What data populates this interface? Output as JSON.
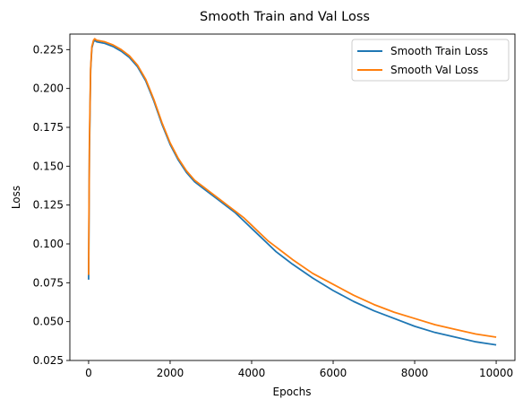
{
  "chart_data": {
    "type": "line",
    "title": "Smooth Train and Val Loss",
    "xlabel": "Epochs",
    "ylabel": "Loss",
    "xlim": [
      -460,
      10460
    ],
    "ylim": [
      0.025,
      0.235
    ],
    "xticks": [
      0,
      2000,
      4000,
      6000,
      8000,
      10000
    ],
    "yticks": [
      0.025,
      0.05,
      0.075,
      0.1,
      0.125,
      0.15,
      0.175,
      0.2,
      0.225
    ],
    "ytick_labels": [
      "0.025",
      "0.050",
      "0.075",
      "0.100",
      "0.125",
      "0.150",
      "0.175",
      "0.200",
      "0.225"
    ],
    "grid": false,
    "legend_position": "upper right",
    "series": [
      {
        "name": "Smooth Train Loss",
        "color": "#1f77b4",
        "x": [
          0,
          20,
          50,
          80,
          120,
          150,
          200,
          400,
          600,
          800,
          1000,
          1200,
          1400,
          1600,
          1800,
          2000,
          2200,
          2400,
          2600,
          2800,
          3000,
          3200,
          3400,
          3600,
          3800,
          4000,
          4200,
          4400,
          4600,
          4800,
          5000,
          5500,
          6000,
          6500,
          7000,
          7500,
          8000,
          8500,
          9000,
          9500,
          10000
        ],
        "values": [
          0.077,
          0.16,
          0.212,
          0.226,
          0.23,
          0.231,
          0.23,
          0.229,
          0.227,
          0.224,
          0.22,
          0.214,
          0.205,
          0.192,
          0.177,
          0.164,
          0.154,
          0.146,
          0.14,
          0.136,
          0.132,
          0.128,
          0.124,
          0.12,
          0.115,
          0.11,
          0.105,
          0.1,
          0.095,
          0.091,
          0.087,
          0.078,
          0.07,
          0.063,
          0.057,
          0.052,
          0.047,
          0.043,
          0.04,
          0.037,
          0.035
        ]
      },
      {
        "name": "Smooth Val Loss",
        "color": "#ff7f0e",
        "x": [
          0,
          20,
          50,
          80,
          120,
          150,
          200,
          400,
          600,
          800,
          1000,
          1200,
          1400,
          1600,
          1800,
          2000,
          2200,
          2400,
          2600,
          2800,
          3000,
          3200,
          3400,
          3600,
          3800,
          4000,
          4200,
          4400,
          4600,
          4800,
          5000,
          5500,
          6000,
          6500,
          7000,
          7500,
          8000,
          8500,
          9000,
          9500,
          10000
        ],
        "values": [
          0.08,
          0.165,
          0.213,
          0.227,
          0.231,
          0.232,
          0.231,
          0.23,
          0.228,
          0.225,
          0.221,
          0.215,
          0.206,
          0.193,
          0.178,
          0.165,
          0.155,
          0.147,
          0.141,
          0.137,
          0.133,
          0.129,
          0.125,
          0.121,
          0.117,
          0.112,
          0.107,
          0.102,
          0.098,
          0.094,
          0.09,
          0.081,
          0.074,
          0.067,
          0.061,
          0.056,
          0.052,
          0.048,
          0.045,
          0.042,
          0.04
        ]
      }
    ]
  }
}
